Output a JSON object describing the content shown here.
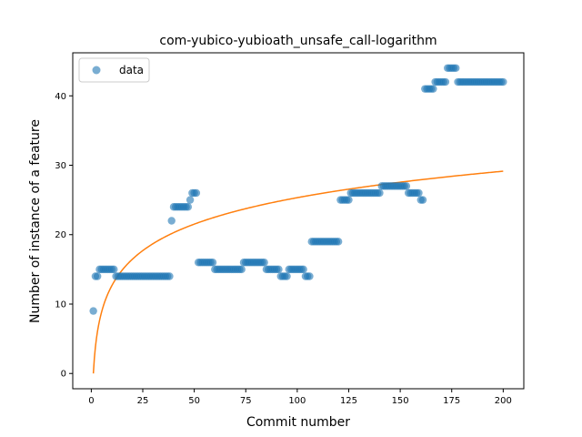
{
  "chart_data": {
    "type": "scatter",
    "title": "com-yubico-yubioath_unsafe_call-logarithm",
    "xlabel": "Commit number",
    "ylabel": "Number of instance of a feature",
    "xlim": [
      -9,
      210
    ],
    "ylim": [
      -2.2,
      46.2
    ],
    "xticks": [
      0,
      25,
      50,
      75,
      100,
      125,
      150,
      175,
      200
    ],
    "yticks": [
      0,
      10,
      20,
      30,
      40
    ],
    "grid": false,
    "legend": {
      "placement": "top-left",
      "entries": [
        "data"
      ]
    },
    "colors": {
      "data": "#1f77b4",
      "fit": "#ff7f0e"
    },
    "series": [
      {
        "name": "data",
        "kind": "scatter",
        "segments": [
          {
            "x_start": 1,
            "x_end": 1,
            "y": 9
          },
          {
            "x_start": 2,
            "x_end": 3,
            "y": 14
          },
          {
            "x_start": 4,
            "x_end": 11,
            "y": 15
          },
          {
            "x_start": 12,
            "x_end": 38,
            "y": 14
          },
          {
            "x_start": 39,
            "x_end": 39,
            "y": 22
          },
          {
            "x_start": 40,
            "x_end": 47,
            "y": 24
          },
          {
            "x_start": 48,
            "x_end": 48,
            "y": 25
          },
          {
            "x_start": 49,
            "x_end": 51,
            "y": 26
          },
          {
            "x_start": 52,
            "x_end": 59,
            "y": 16
          },
          {
            "x_start": 60,
            "x_end": 73,
            "y": 15
          },
          {
            "x_start": 74,
            "x_end": 84,
            "y": 16
          },
          {
            "x_start": 85,
            "x_end": 91,
            "y": 15
          },
          {
            "x_start": 92,
            "x_end": 95,
            "y": 14
          },
          {
            "x_start": 96,
            "x_end": 103,
            "y": 15
          },
          {
            "x_start": 104,
            "x_end": 106,
            "y": 14
          },
          {
            "x_start": 107,
            "x_end": 120,
            "y": 19
          },
          {
            "x_start": 121,
            "x_end": 125,
            "y": 25
          },
          {
            "x_start": 126,
            "x_end": 140,
            "y": 26
          },
          {
            "x_start": 141,
            "x_end": 153,
            "y": 27
          },
          {
            "x_start": 154,
            "x_end": 159,
            "y": 26
          },
          {
            "x_start": 160,
            "x_end": 161,
            "y": 25
          },
          {
            "x_start": 162,
            "x_end": 166,
            "y": 41
          },
          {
            "x_start": 167,
            "x_end": 172,
            "y": 42
          },
          {
            "x_start": 173,
            "x_end": 177,
            "y": 44
          },
          {
            "x_start": 178,
            "x_end": 200,
            "y": 42
          }
        ]
      },
      {
        "name": "",
        "kind": "line",
        "model": "a*ln(x)",
        "a": 5.5,
        "x_range": [
          1,
          200
        ]
      }
    ]
  }
}
